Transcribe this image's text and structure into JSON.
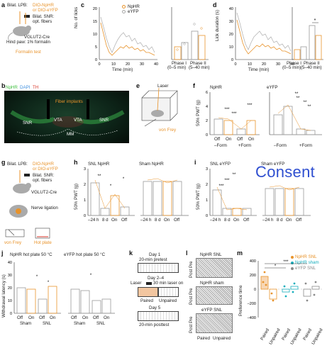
{
  "panels": {
    "a": {
      "label": "a",
      "lines": [
        "Bilat. LPB:",
        "DIO-NpHR",
        "or DIO-eYFP",
        "Bilat. SNR:",
        "opt. fibers",
        "VGLUT2-Cre",
        "Hind paw: 1% formalin",
        "Formalin test"
      ]
    },
    "b": {
      "label": "b",
      "legend": [
        "NpHR",
        "DAPI",
        "TH"
      ],
      "regions": [
        "Fiber implants",
        "SNR",
        "VTA",
        "VTA",
        "SNR",
        "MM"
      ]
    },
    "c": {
      "label": "c",
      "legend": [
        "NpHR",
        "eYFP"
      ],
      "ylabel": "No. of licks",
      "xlabel": "Time (min)",
      "yticks": [
        "0",
        "5",
        "10",
        "15",
        "20"
      ],
      "xticks": [
        "0",
        "10",
        "20",
        "30",
        "40"
      ],
      "bar_ylabel": "No. of licks",
      "bar_yticks": [
        "0",
        "20",
        "40",
        "60",
        "80"
      ],
      "phase_labels": [
        "Phase I",
        "(0–5 min)",
        "Phase II",
        "(5–40 min)"
      ]
    },
    "d": {
      "label": "d",
      "ylabel": "Lick duration (s)",
      "xlabel": "Time (min)",
      "yticks": [
        "0",
        "10",
        "20",
        "30",
        "40"
      ],
      "xticks": [
        "0",
        "10",
        "20",
        "30",
        "40"
      ],
      "bar_ylabel": "Lick duration (s)",
      "bar_yticks": [
        "0",
        "100",
        "200",
        "300"
      ],
      "phase_labels": [
        "Phase I",
        "(0–5 min)",
        "Phase II",
        "(5–40 min)"
      ],
      "sig": "*"
    },
    "e": {
      "label": "e",
      "lines": [
        "Laser",
        "von Frey"
      ]
    },
    "f": {
      "label": "f",
      "titles": [
        "NpHR",
        "eYFP"
      ],
      "ylabel": "50% PWT (g)",
      "yticks": [
        "0",
        "2",
        "4",
        "6"
      ],
      "xticks": [
        "Off",
        "On",
        "Off",
        "On"
      ],
      "groups": [
        "–Form",
        "+Form"
      ],
      "sig": [
        "***",
        "***",
        "***",
        "**",
        "**",
        "**",
        "**"
      ]
    },
    "g": {
      "label": "g",
      "lines": [
        "Bilat. LPB:",
        "DIO-NpHR",
        "or DIO-eYFP",
        "Bilat. SNR:",
        "opt. fibers",
        "VGLUT2-Cre",
        "Nerve ligation",
        "von Frey",
        "Hot plate"
      ]
    },
    "h": {
      "label": "h",
      "titles": [
        "SNL NpHR",
        "Sham NpHR"
      ],
      "ylabel": "50% PWT (g)",
      "yticks": [
        "0",
        "1",
        "2",
        "3"
      ],
      "xticks": [
        "–24 h",
        "8 d",
        "On",
        "Off"
      ],
      "sig": [
        "**",
        "*",
        "*"
      ]
    },
    "i": {
      "label": "i",
      "titles": [
        "SNL eYFP",
        "Sham eYFP"
      ],
      "ylabel": "50% PWT (g)",
      "yticks": [
        "0",
        "1",
        "2",
        "3"
      ],
      "xticks": [
        "–24 h",
        "8 d",
        "On",
        "Off"
      ],
      "sig": [
        "**",
        "***",
        "***"
      ]
    },
    "j": {
      "label": "j",
      "titles": [
        "NpHR hot plate 50 °C",
        "eYFP hot plate 50 °C"
      ],
      "ylabel": "Withdrawal latency (s)",
      "yticks": [
        "0",
        "10",
        "20",
        "30",
        "40"
      ],
      "xticks": [
        "Off",
        "On",
        "Off",
        "On"
      ],
      "groups": [
        "Sham",
        "SNL",
        "Sham",
        "SNL"
      ],
      "sig": [
        "*",
        "*",
        "*"
      ]
    },
    "k": {
      "label": "k",
      "lines": [
        "Day 1",
        "20-min pretest",
        "Day 2–4",
        "Laser",
        "30 min laser on",
        "Paired",
        "Unpaired",
        "Day 5",
        "20-min posttest"
      ]
    },
    "l": {
      "label": "l",
      "rows": [
        "NpHR SNL",
        "NpHR sham",
        "eYFP SNL"
      ],
      "side": [
        "Pre",
        "Post",
        "Pre",
        "Post",
        "Pre",
        "Post"
      ],
      "xlabels": [
        "Paired",
        "Unpaired"
      ]
    },
    "m": {
      "label": "m",
      "legend": [
        "NpHR SNL",
        "NpHR sham",
        "eYFP SNL"
      ],
      "ylabel": "Preference time",
      "yticks": [
        "–400",
        "–200",
        "0",
        "200",
        "400"
      ],
      "xticks": [
        "Paired",
        "Unpaired",
        "Paired",
        "Unpaired",
        "Paired",
        "Unpaired"
      ],
      "sig": [
        "*",
        "***"
      ]
    }
  },
  "overlay": {
    "text": "Consent"
  },
  "colors": {
    "nphr": "#e8932b",
    "eyfp": "#a6a6a6",
    "red": "#d8372b",
    "green": "#3fbf3f",
    "cyan": "#18aebd",
    "blue": "#2f4fd0"
  }
}
